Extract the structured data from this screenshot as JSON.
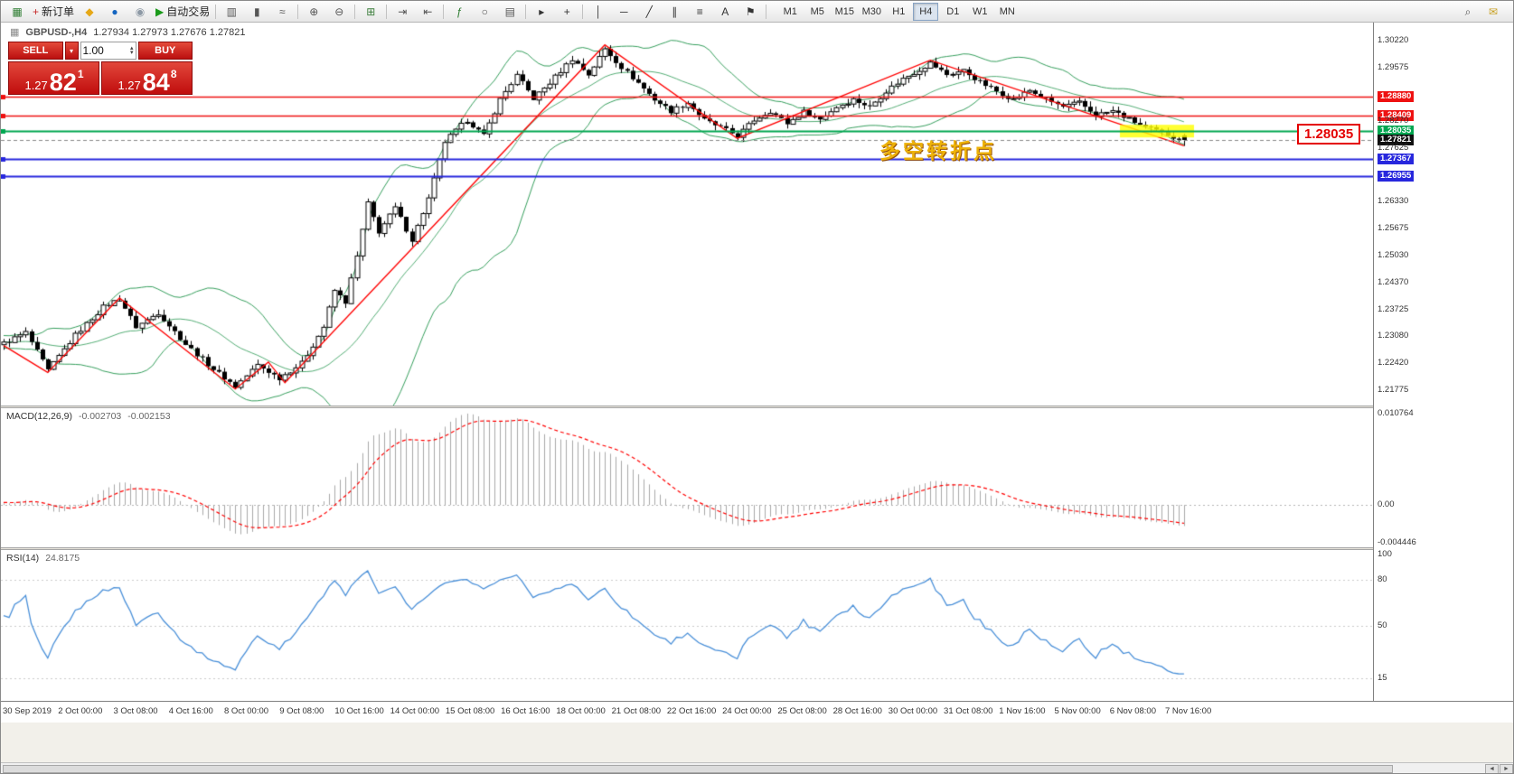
{
  "toolbar": {
    "items": [
      {
        "name": "new-chart-button",
        "glyph": "▦",
        "color": "#2e7d32"
      },
      {
        "name": "new-order-button",
        "glyph": "+",
        "color": "#c62828",
        "label": "新订单"
      },
      {
        "name": "history-center-button",
        "glyph": "◆",
        "color": "#e6a817"
      },
      {
        "name": "web-community-button",
        "glyph": "●",
        "color": "#1565c0"
      },
      {
        "name": "metaeditor-button",
        "glyph": "◉",
        "color": "#8d99a5"
      },
      {
        "name": "autotrading-button",
        "glyph": "▶",
        "color": "#1a9a1a",
        "label": "自动交易"
      },
      {
        "type": "sep"
      },
      {
        "name": "bar-chart-button",
        "glyph": "▥",
        "color": "#555555"
      },
      {
        "name": "candlestick-chart-button",
        "glyph": "▮",
        "color": "#555555"
      },
      {
        "name": "line-chart-button",
        "glyph": "≈",
        "color": "#555555"
      },
      {
        "type": "sep"
      },
      {
        "name": "zoom-in-button",
        "glyph": "⊕",
        "color": "#555555"
      },
      {
        "name": "zoom-out-button",
        "glyph": "⊖",
        "color": "#555555"
      },
      {
        "type": "sep"
      },
      {
        "name": "tile-windows-button",
        "glyph": "⊞",
        "color": "#3a7d3a"
      },
      {
        "type": "sep"
      },
      {
        "name": "auto-scroll-button",
        "glyph": "⇥",
        "color": "#555555"
      },
      {
        "name": "chart-shift-button",
        "glyph": "⇤",
        "color": "#555555"
      },
      {
        "type": "sep"
      },
      {
        "name": "indicators-button",
        "glyph": "ƒ",
        "color": "#2e7d32"
      },
      {
        "name": "periods-button",
        "glyph": "○",
        "color": "#555555"
      },
      {
        "name": "templates-button",
        "glyph": "▤",
        "color": "#555555"
      },
      {
        "type": "sep"
      },
      {
        "name": "cursor-button",
        "glyph": "▸",
        "color": "#333333"
      },
      {
        "name": "crosshair-button",
        "glyph": "+",
        "color": "#333333"
      },
      {
        "type": "sep"
      },
      {
        "name": "vertical-line-button",
        "glyph": "│",
        "color": "#333333"
      },
      {
        "name": "horizontal-line-button",
        "glyph": "─",
        "color": "#333333"
      },
      {
        "name": "trendline-button",
        "glyph": "╱",
        "color": "#333333"
      },
      {
        "name": "channel-button",
        "glyph": "∥",
        "color": "#333333"
      },
      {
        "name": "fibonacci-button",
        "glyph": "≡",
        "color": "#333333"
      },
      {
        "name": "text-button",
        "glyph": "A",
        "color": "#333333"
      },
      {
        "name": "arrows-button",
        "glyph": "⚑",
        "color": "#333333"
      },
      {
        "type": "sep"
      }
    ],
    "timeframes": {
      "options": [
        "M1",
        "M5",
        "M15",
        "M30",
        "H1",
        "H4",
        "D1",
        "W1",
        "MN"
      ],
      "active": "H4"
    },
    "right_icons": [
      {
        "name": "search-button",
        "glyph": "⌕",
        "color": "#555555"
      },
      {
        "name": "community-chat-button",
        "glyph": "✉",
        "color": "#c8a022"
      }
    ]
  },
  "glyphs": {
    "chart_mini": "▦",
    "dropdown": "▾",
    "spin_up": "▴",
    "spin_down": "▾",
    "scroll_left": "◄",
    "scroll_right": "►"
  },
  "chart_header": {
    "symbol_period": "GBPUSD-,H4",
    "ohlc": "1.27934 1.27973 1.27676 1.27821"
  },
  "one_click": {
    "sell_label": "SELL",
    "buy_label": "BUY",
    "volume": "1.00",
    "sell_price": {
      "small": "1.27",
      "big": "82",
      "sup": "1"
    },
    "buy_price": {
      "small": "1.27",
      "big": "84",
      "sup": "8"
    }
  },
  "annotations": {
    "turning_point": "多空转折点",
    "price_callout": "1.28035"
  },
  "price_scale": [
    {
      "label": "1.30220",
      "type": "grid"
    },
    {
      "label": "1.29575",
      "type": "grid"
    },
    {
      "label": "1.28880",
      "type": "red"
    },
    {
      "label": "1.28409",
      "type": "red"
    },
    {
      "label": "1.28270",
      "type": "grid"
    },
    {
      "label": "1.28035",
      "type": "green"
    },
    {
      "label": "1.27821",
      "type": "current"
    },
    {
      "label": "1.27625",
      "type": "grid"
    },
    {
      "label": "1.27367",
      "type": "blue"
    },
    {
      "label": "1.26955",
      "type": "blue"
    },
    {
      "label": "1.26330",
      "type": "grid"
    },
    {
      "label": "1.25675",
      "type": "grid"
    },
    {
      "label": "1.25030",
      "type": "grid"
    },
    {
      "label": "1.24370",
      "type": "grid"
    },
    {
      "label": "1.23725",
      "type": "grid"
    },
    {
      "label": "1.23080",
      "type": "grid"
    },
    {
      "label": "1.22420",
      "type": "grid"
    },
    {
      "label": "1.21775",
      "type": "grid"
    }
  ],
  "macd": {
    "label": "MACD(12,26,9)",
    "main_value": "-0.002703",
    "signal_value": "-0.002153",
    "scale_top": "0.010764",
    "scale_zero": "0.00",
    "scale_bottom": "-0.004446",
    "fast": 12,
    "slow": 26,
    "signal": 9
  },
  "rsi": {
    "label": "RSI(14)",
    "value": "24.8175",
    "period": 14,
    "scale": [
      {
        "label": "100",
        "value": 100
      },
      {
        "label": "80",
        "value": 80
      },
      {
        "label": "50",
        "value": 50
      },
      {
        "label": "15",
        "value": 15
      }
    ]
  },
  "time_axis": [
    "30 Sep 2019",
    "2 Oct 00:00",
    "3 Oct 08:00",
    "4 Oct 16:00",
    "8 Oct 00:00",
    "9 Oct 08:00",
    "10 Oct 16:00",
    "14 Oct 00:00",
    "15 Oct 08:00",
    "16 Oct 16:00",
    "18 Oct 00:00",
    "21 Oct 08:00",
    "22 Oct 16:00",
    "24 Oct 00:00",
    "25 Oct 08:00",
    "28 Oct 16:00",
    "30 Oct 00:00",
    "31 Oct 08:00",
    "1 Nov 16:00",
    "5 Nov 00:00",
    "6 Nov 08:00",
    "7 Nov 16:00"
  ],
  "chart_data": {
    "type": "candlestick",
    "symbol": "GBPUSD-",
    "timeframe": "H4",
    "ohlc_current": {
      "open": 1.27934,
      "high": 1.27973,
      "low": 1.27676,
      "close": 1.27821
    },
    "candle_count": 215,
    "warmup": 40,
    "y_range": [
      1.214,
      1.3066
    ],
    "price_keypoints": [
      [
        -40,
        1.225
      ],
      [
        -32,
        1.23
      ],
      [
        -24,
        1.2268
      ],
      [
        -16,
        1.231
      ],
      [
        -8,
        1.2285
      ],
      [
        0,
        1.229
      ],
      [
        4,
        1.2316
      ],
      [
        8,
        1.2224
      ],
      [
        13,
        1.231
      ],
      [
        18,
        1.2378
      ],
      [
        21,
        1.2398
      ],
      [
        24,
        1.233
      ],
      [
        28,
        1.2364
      ],
      [
        33,
        1.2288
      ],
      [
        38,
        1.2228
      ],
      [
        42,
        1.2186
      ],
      [
        46,
        1.2238
      ],
      [
        50,
        1.2206
      ],
      [
        54,
        1.2242
      ],
      [
        58,
        1.233
      ],
      [
        60,
        1.2418
      ],
      [
        62,
        1.239
      ],
      [
        64,
        1.25
      ],
      [
        66,
        1.2628
      ],
      [
        68,
        1.256
      ],
      [
        71,
        1.2618
      ],
      [
        74,
        1.254
      ],
      [
        77,
        1.264
      ],
      [
        80,
        1.2778
      ],
      [
        84,
        1.283
      ],
      [
        87,
        1.2792
      ],
      [
        90,
        1.288
      ],
      [
        93,
        1.2938
      ],
      [
        96,
        1.2882
      ],
      [
        99,
        1.292
      ],
      [
        103,
        1.2978
      ],
      [
        106,
        1.294
      ],
      [
        109,
        1.3002
      ],
      [
        112,
        1.2958
      ],
      [
        115,
        1.292
      ],
      [
        118,
        1.288
      ],
      [
        121,
        1.2852
      ],
      [
        124,
        1.2872
      ],
      [
        127,
        1.283
      ],
      [
        130,
        1.2812
      ],
      [
        133,
        1.2792
      ],
      [
        136,
        1.283
      ],
      [
        139,
        1.2852
      ],
      [
        142,
        1.2822
      ],
      [
        145,
        1.285
      ],
      [
        148,
        1.2832
      ],
      [
        151,
        1.2862
      ],
      [
        154,
        1.288
      ],
      [
        157,
        1.2862
      ],
      [
        160,
        1.29
      ],
      [
        163,
        1.293
      ],
      [
        166,
        1.2952
      ],
      [
        168,
        1.2968
      ],
      [
        171,
        1.294
      ],
      [
        174,
        1.295
      ],
      [
        177,
        1.2922
      ],
      [
        180,
        1.29
      ],
      [
        183,
        1.288
      ],
      [
        186,
        1.2902
      ],
      [
        189,
        1.288
      ],
      [
        192,
        1.2862
      ],
      [
        195,
        1.2872
      ],
      [
        198,
        1.2842
      ],
      [
        201,
        1.2852
      ],
      [
        204,
        1.2832
      ],
      [
        207,
        1.2812
      ],
      [
        210,
        1.28
      ],
      [
        212,
        1.279
      ],
      [
        214,
        1.2782
      ]
    ],
    "zigzag_points": [
      [
        0,
        1.2285
      ],
      [
        8,
        1.222
      ],
      [
        21,
        1.24
      ],
      [
        42,
        1.218
      ],
      [
        48,
        1.2245
      ],
      [
        51,
        1.2195
      ],
      [
        109,
        1.3012
      ],
      [
        133,
        1.2786
      ],
      [
        168,
        1.2975
      ],
      [
        214,
        1.2768
      ]
    ],
    "bollinger": {
      "period": 20,
      "deviation": 2
    },
    "horizontal_lines": [
      {
        "price": 1.2888,
        "color": "red"
      },
      {
        "price": 1.28409,
        "color": "red"
      },
      {
        "price": 1.28035,
        "color": "green"
      },
      {
        "price": 1.27367,
        "color": "blue"
      },
      {
        "price": 1.26955,
        "color": "blue"
      }
    ],
    "highlight_rect": {
      "price_center": 1.28035,
      "x_from": 1238,
      "x_to": 1320
    }
  },
  "colors": {
    "up_candle": "#ffffff",
    "down_candle": "#000000",
    "candle_border": "#000000",
    "bollinger": "#37a05e",
    "zigzag": "#ff0000",
    "macd_hist": "#a9a9a9",
    "macd_signal": "#ff0000",
    "rsi_line": "#4a90d9",
    "line_red": "#ee1111",
    "line_green": "#00a650",
    "line_blue": "#2727dd",
    "highlight_yellow": "#ffff00",
    "panel_red": "#c00d0d"
  }
}
